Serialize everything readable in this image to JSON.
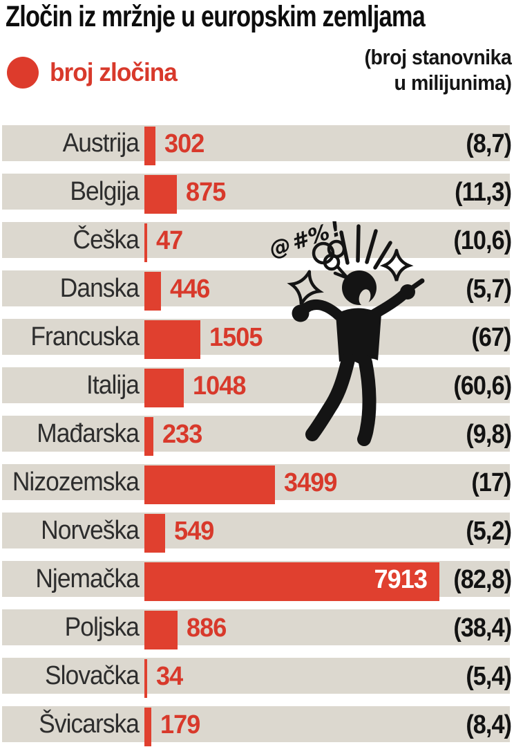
{
  "title": "Zločin iz mržnje u europskim zemljama",
  "legend": {
    "label": "broj zločina"
  },
  "note": {
    "line1": "(broj stanovnika",
    "line2": "u milijunima)"
  },
  "figure": {
    "exclamation": "@#%!"
  },
  "colors": {
    "bar_red": "#e0402f",
    "value_red": "#d8392b",
    "row_band": "#dcd8cf",
    "text_black": "#121212",
    "background": "#ffffff"
  },
  "rows": [
    {
      "name": "Austrija",
      "crimes": 302,
      "population": "(8,7)"
    },
    {
      "name": "Belgija",
      "crimes": 875,
      "population": "(11,3)"
    },
    {
      "name": "Češka",
      "crimes": 47,
      "population": "(10,6)"
    },
    {
      "name": "Danska",
      "crimes": 446,
      "population": "(5,7)"
    },
    {
      "name": "Francuska",
      "crimes": 1505,
      "population": "(67)"
    },
    {
      "name": "Italija",
      "crimes": 1048,
      "population": "(60,6)"
    },
    {
      "name": "Mađarska",
      "crimes": 233,
      "population": "(9,8)"
    },
    {
      "name": "Nizozemska",
      "crimes": 3499,
      "population": "(17)"
    },
    {
      "name": "Norveška",
      "crimes": 549,
      "population": "(5,2)"
    },
    {
      "name": "Njemačka",
      "crimes": 7913,
      "population": "(82,8)"
    },
    {
      "name": "Poljska",
      "crimes": 886,
      "population": "(38,4)"
    },
    {
      "name": "Slovačka",
      "crimes": 34,
      "population": "(5,4)"
    },
    {
      "name": "Švicarska",
      "crimes": 179,
      "population": "(8,4)"
    }
  ],
  "chart_data": {
    "type": "bar",
    "orientation": "horizontal",
    "title": "Zločin iz mržnje u europskim zemljama",
    "legend_label": "broj zločina",
    "annotation": "(broj stanovnika u milijunima)",
    "categories": [
      "Austrija",
      "Belgija",
      "Češka",
      "Danska",
      "Francuska",
      "Italija",
      "Mađarska",
      "Nizozemska",
      "Norveška",
      "Njemačka",
      "Poljska",
      "Slovačka",
      "Švicarska"
    ],
    "series": [
      {
        "name": "broj zločina",
        "values": [
          302,
          875,
          47,
          446,
          1505,
          1048,
          233,
          3499,
          549,
          7913,
          886,
          34,
          179
        ]
      },
      {
        "name": "broj stanovnika u milijunima",
        "values": [
          8.7,
          11.3,
          10.6,
          5.7,
          67,
          60.6,
          9.8,
          17,
          5.2,
          82.8,
          38.4,
          5.4,
          8.4
        ]
      }
    ],
    "xlim": [
      0,
      7913
    ],
    "grid": false,
    "bar_color": "#e0402f",
    "value_labels": "shown next to bars (inside bar for Njemačka)"
  }
}
